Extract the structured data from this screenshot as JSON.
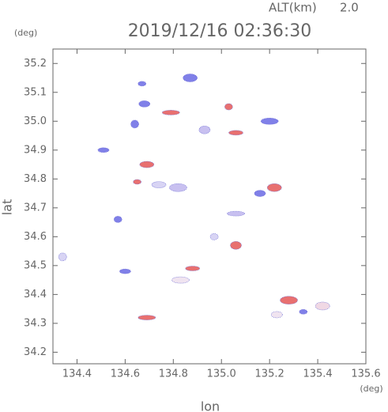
{
  "chart_data": {
    "type": "scatter",
    "title": "2019/12/16 02:36:30",
    "altitude_label": "ALT(km)",
    "altitude": "2.0",
    "y_unit": "(deg)",
    "x_unit": "(deg)",
    "xlabel": "lon",
    "ylabel": "lat",
    "xlim": [
      134.3,
      135.6
    ],
    "ylim": [
      34.16,
      35.25
    ],
    "xticks": [
      134.4,
      134.6,
      134.8,
      {
        "value": 135.0,
        "label": "135.0"
      },
      135.2,
      135.4,
      135.6
    ],
    "yticks": [
      34.2,
      34.3,
      34.4,
      34.5,
      34.6,
      34.7,
      34.8,
      34.9,
      {
        "value": 35.0,
        "label": "35.0"
      },
      35.1,
      35.2
    ],
    "x": [
      134.67,
      134.68,
      134.87,
      134.79,
      135.03,
      134.93,
      135.06,
      135.2,
      134.64,
      134.51,
      134.74,
      134.82,
      134.65,
      135.16,
      135.22,
      135.06,
      134.97,
      135.06,
      134.88,
      134.83,
      134.34,
      134.6,
      134.69,
      135.28,
      135.34,
      135.23,
      135.42,
      134.69,
      134.57
    ],
    "y": [
      35.13,
      35.06,
      35.15,
      35.03,
      35.05,
      34.97,
      34.96,
      35.0,
      34.99,
      34.9,
      34.78,
      34.77,
      34.79,
      34.75,
      34.77,
      34.68,
      34.6,
      34.57,
      34.49,
      34.45,
      34.53,
      34.48,
      34.85,
      34.38,
      34.34,
      34.33,
      34.36,
      34.32,
      34.66
    ],
    "colors": [
      "#8080e8",
      "#8080e8",
      "#8080e8",
      "#e87070",
      "#e87070",
      "#c8c0f0",
      "#e87070",
      "#8080e8",
      "#8080e8",
      "#8080e8",
      "#d8d4f4",
      "#c8c0f0",
      "#e87070",
      "#8080e8",
      "#e87070",
      "#c8c0f0",
      "#d8d4f4",
      "#e87070",
      "#e87070",
      "#f0e4f0",
      "#d8d4f4",
      "#8080e8",
      "#e87070",
      "#e87070",
      "#8080e8",
      "#f0e4f0",
      "#f0d8e4",
      "#e87070",
      "#8080e8"
    ]
  }
}
